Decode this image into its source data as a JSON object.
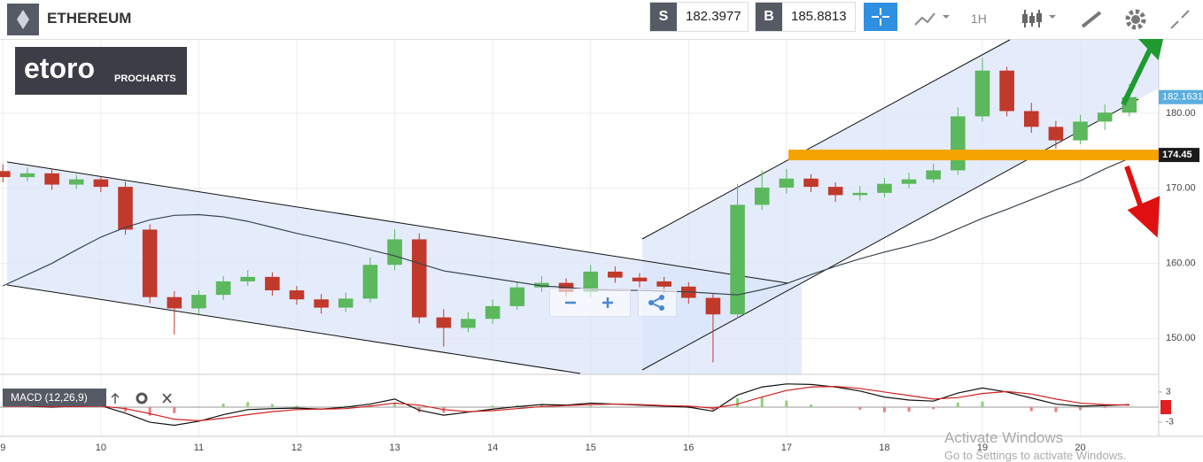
{
  "toolbar": {
    "instrument": "ETHEREUM",
    "sell_label": "S",
    "sell": 182.3977,
    "buy_label": "B",
    "buy": 185.8813,
    "timeframe": "1H"
  },
  "logo": {
    "brand": "etoro",
    "product": "PROCHARTS"
  },
  "watermark": {
    "title": "Activate Windows",
    "text": "Go to Settings to activate Windows."
  },
  "chart_data": {
    "type": "candlestick",
    "x": [
      9,
      9.25,
      9.5,
      9.75,
      10,
      10.25,
      10.5,
      10.75,
      11,
      11.25,
      11.5,
      11.75,
      12,
      12.25,
      12.5,
      12.75,
      13,
      13.25,
      13.5,
      13.75,
      14,
      14.25,
      14.5,
      14.75,
      15,
      15.25,
      15.5,
      15.75,
      16,
      16.25,
      16.5,
      16.75,
      17,
      17.25,
      17.5,
      17.75,
      18,
      18.25,
      18.5,
      18.75,
      19,
      19.25,
      19.5,
      19.75,
      20,
      20.25,
      20.5
    ],
    "open": [
      172.3,
      171.5,
      172,
      170.5,
      171.2,
      170.2,
      164.5,
      155.5,
      154,
      155.8,
      157.6,
      158.2,
      156.4,
      155.2,
      154.1,
      155.3,
      159.8,
      163.2,
      152.8,
      151.4,
      152.6,
      154.3,
      156.8,
      157.4,
      156.2,
      158.9,
      158.1,
      157.6,
      156.9,
      155.4,
      153.2,
      167.8,
      170.1,
      171.3,
      170.2,
      169.1,
      169.4,
      170.6,
      171.2,
      172.4,
      179.6,
      185.7,
      180.3,
      178.2,
      176.4,
      178.9,
      180.1
    ],
    "high": [
      173.2,
      172.8,
      172.6,
      171.8,
      171.6,
      170.9,
      165.2,
      156.3,
      156.4,
      158.3,
      159.1,
      158.8,
      157,
      155.9,
      156.1,
      160.8,
      164.6,
      164,
      153.9,
      153.5,
      155.2,
      157.5,
      158.3,
      158,
      159.8,
      159.6,
      158.7,
      158.2,
      157.5,
      156,
      170.6,
      172.4,
      172.6,
      171.9,
      170.8,
      170.3,
      171.4,
      172.1,
      173.3,
      180.8,
      187.4,
      186.2,
      181.4,
      179,
      179.8,
      181.2,
      183.9
    ],
    "low": [
      170.8,
      170.9,
      169.8,
      169.9,
      169.5,
      163.8,
      154.7,
      150.5,
      153.2,
      155.1,
      157,
      155.7,
      154.5,
      153.3,
      153.5,
      154.8,
      159.1,
      152,
      148.9,
      150.8,
      151.9,
      153.8,
      156.2,
      155.6,
      155.5,
      157.4,
      156.8,
      156,
      154.6,
      146.8,
      152.6,
      167.1,
      169.3,
      169.5,
      168.2,
      168.4,
      168.8,
      170,
      170.7,
      171.8,
      178.9,
      179.6,
      177.4,
      175.3,
      175.9,
      177.8,
      179.6
    ],
    "close": [
      171.5,
      172,
      170.5,
      171.2,
      170.2,
      164.5,
      155.5,
      154,
      155.8,
      157.6,
      158.2,
      156.4,
      155.2,
      154.1,
      155.3,
      159.8,
      163.2,
      152.8,
      151.4,
      152.6,
      154.3,
      156.8,
      157.4,
      156.2,
      158.9,
      158.1,
      157.6,
      156.9,
      155.4,
      153.2,
      167.8,
      170.1,
      171.3,
      170.2,
      169.1,
      169.4,
      170.6,
      171.2,
      172.4,
      179.6,
      185.7,
      180.3,
      178.2,
      176.4,
      178.9,
      180.1,
      182.16
    ],
    "up_color": "#5cb85c",
    "down_color": "#c0392b",
    "moving_average": {
      "color": "#3a4650",
      "values": [
        157,
        158.5,
        160,
        161.8,
        163.5,
        164.8,
        165.8,
        166.4,
        166.5,
        166.2,
        165.6,
        164.8,
        164,
        163.3,
        162.6,
        161.8,
        161,
        160,
        159,
        158.5,
        158,
        157.5,
        157,
        156.8,
        156.5,
        156.4,
        156.4,
        156.3,
        156.2,
        156,
        155.8,
        156.5,
        157.3,
        158.5,
        159.6,
        160.6,
        161.5,
        162.3,
        163.2,
        164.6,
        166,
        167.2,
        168.5,
        169.8,
        171,
        172.6,
        174
      ]
    },
    "xlim": [
      8.97,
      20.8
    ],
    "xticks": [
      9,
      10,
      11,
      12,
      13,
      14,
      15,
      16,
      17,
      18,
      19,
      20
    ],
    "ylim": [
      145.2,
      189.8
    ],
    "yticks": [
      {
        "value": 150,
        "label": "150.00"
      },
      {
        "value": 160,
        "label": "160.00"
      },
      {
        "value": 170,
        "label": "170.00"
      },
      {
        "value": 180,
        "label": "180.00"
      }
    ],
    "grid": true,
    "level": {
      "value": 174.45,
      "color": "#f5a300"
    },
    "current_price": {
      "value": 182.1631,
      "color": "#5aaee0"
    },
    "indicator": {
      "label": "MACD (12,26,9)",
      "ylim": [
        -5.8,
        6.5
      ],
      "yticks": [
        -3,
        3
      ],
      "macd": {
        "color": "#111111",
        "values": [
          0.3,
          0.2,
          0,
          0.2,
          0.3,
          -1.2,
          -3,
          -3.6,
          -2.8,
          -1.5,
          -0.5,
          -0.3,
          -0.2,
          -0.4,
          0,
          0.6,
          1.6,
          -0.6,
          -1.6,
          -1,
          -0.4,
          0.1,
          0.5,
          0.4,
          0.8,
          0.6,
          0.4,
          0.2,
          0,
          -0.8,
          2.4,
          4,
          4.6,
          4.5,
          4,
          3.2,
          2,
          1.4,
          1.2,
          2.8,
          3.8,
          3,
          1.8,
          0.6,
          0.2,
          0.3,
          0.5
        ]
      },
      "signal": {
        "color": "#d02020",
        "values": [
          0.2,
          0.2,
          0.1,
          0.1,
          0.2,
          -0.3,
          -1.3,
          -2.4,
          -2.7,
          -2.2,
          -1.5,
          -0.9,
          -0.5,
          -0.4,
          -0.3,
          0.2,
          0.8,
          0.4,
          -0.5,
          -0.9,
          -0.7,
          -0.3,
          0.1,
          0.3,
          0.5,
          0.6,
          0.5,
          0.3,
          0.2,
          -0.2,
          0.6,
          2,
          3.3,
          4,
          4.1,
          3.7,
          3,
          2.3,
          1.6,
          1.9,
          2.7,
          3.1,
          2.6,
          1.6,
          0.8,
          0.5,
          0.4
        ]
      }
    }
  }
}
